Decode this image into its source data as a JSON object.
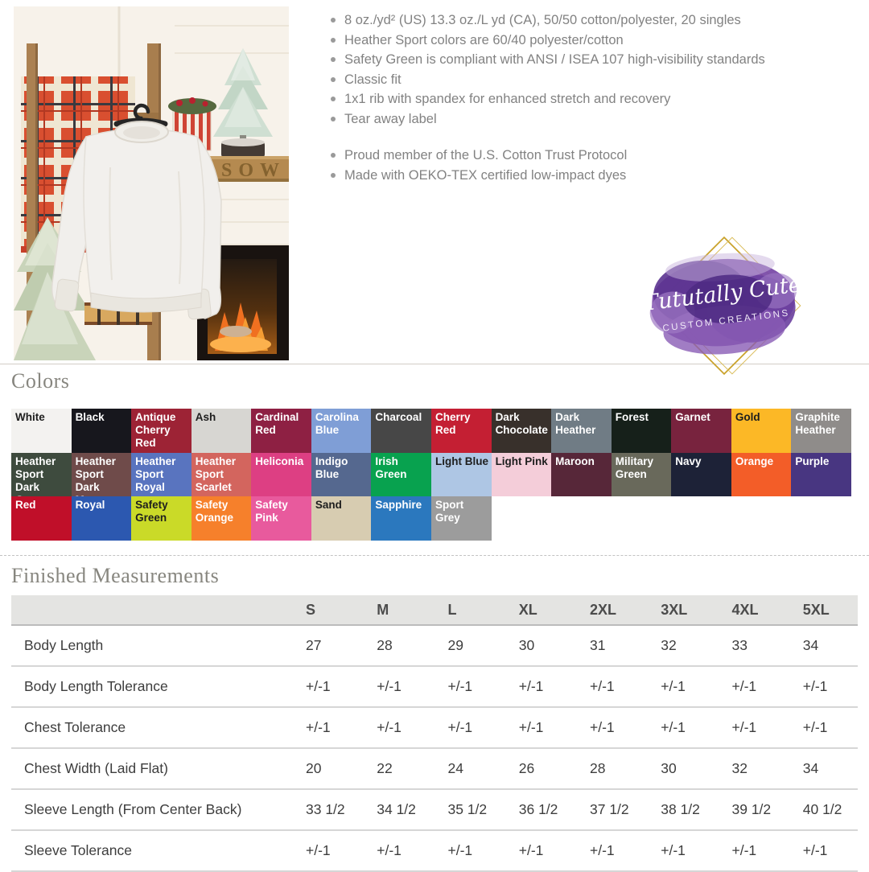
{
  "photo": {
    "shelf_text": "SOW"
  },
  "features": {
    "bullets": [
      "8 oz./yd² (US) 13.3 oz./L yd (CA), 50/50 cotton/polyester, 20 singles",
      "Heather Sport colors are 60/40 polyester/cotton",
      "Safety Green is compliant with ANSI / ISEA 107 high-visibility standards",
      "Classic fit",
      "1x1 rib with spandex for enhanced stretch and recovery",
      "Tear away label"
    ],
    "bullets_secondary": [
      "Proud member of the U.S. Cotton Trust Protocol",
      "Made with OEKO-TEX certified low-impact dyes"
    ]
  },
  "logo": {
    "name": "Tututally Cute",
    "tagline": "CUSTOM CREATIONS",
    "purple": "#6a3f9e",
    "gold": "#c9a22b"
  },
  "colors_section": {
    "heading": "Colors",
    "swatches": [
      {
        "label": "White",
        "bg": "#f3f2f0",
        "fg": "#1e1e1e"
      },
      {
        "label": "Black",
        "bg": "#17171d",
        "fg": "#ffffff"
      },
      {
        "label": "Antique Cherry Red",
        "bg": "#9d2335",
        "fg": "#ffffff"
      },
      {
        "label": "Ash",
        "bg": "#d7d6d2",
        "fg": "#1e1e1e"
      },
      {
        "label": "Cardinal Red",
        "bg": "#8e2043",
        "fg": "#ffffff"
      },
      {
        "label": "Carolina Blue",
        "bg": "#7f9ed6",
        "fg": "#ffffff"
      },
      {
        "label": "Charcoal",
        "bg": "#474747",
        "fg": "#ffffff"
      },
      {
        "label": "Cherry Red",
        "bg": "#c41f33",
        "fg": "#ffffff"
      },
      {
        "label": "Dark Chocolate",
        "bg": "#38302b",
        "fg": "#ffffff"
      },
      {
        "label": "Dark Heather",
        "bg": "#707c85",
        "fg": "#ffffff"
      },
      {
        "label": "Forest",
        "bg": "#16201a",
        "fg": "#ffffff"
      },
      {
        "label": "Garnet",
        "bg": "#78233e",
        "fg": "#ffffff"
      },
      {
        "label": "Gold",
        "bg": "#fcb826",
        "fg": "#1e1e1e"
      },
      {
        "label": "Graphite Heather",
        "bg": "#8f8c8a",
        "fg": "#ffffff"
      },
      {
        "label": "Heather Sport Dark Green",
        "bg": "#3e4b3e",
        "fg": "#ffffff"
      },
      {
        "label": "Heather Sport Dark Maroon",
        "bg": "#6f4b4a",
        "fg": "#ffffff"
      },
      {
        "label": "Heather Sport Royal",
        "bg": "#5974bf",
        "fg": "#ffffff"
      },
      {
        "label": "Heather Sport Scarlet",
        "bg": "#d3655e",
        "fg": "#ffffff"
      },
      {
        "label": "Heliconia",
        "bg": "#dd3f83",
        "fg": "#ffffff"
      },
      {
        "label": "Indigo Blue",
        "bg": "#55688f",
        "fg": "#ffffff"
      },
      {
        "label": "Irish Green",
        "bg": "#08a24f",
        "fg": "#ffffff"
      },
      {
        "label": "Light Blue",
        "bg": "#aec6e4",
        "fg": "#1e1e1e"
      },
      {
        "label": "Light Pink",
        "bg": "#f4cdd9",
        "fg": "#1e1e1e"
      },
      {
        "label": "Maroon",
        "bg": "#572739",
        "fg": "#ffffff"
      },
      {
        "label": "Military Green",
        "bg": "#69695b",
        "fg": "#ffffff"
      },
      {
        "label": "Navy",
        "bg": "#1d2237",
        "fg": "#ffffff"
      },
      {
        "label": "Orange",
        "bg": "#f35d28",
        "fg": "#ffffff"
      },
      {
        "label": "Purple",
        "bg": "#483681",
        "fg": "#ffffff"
      },
      {
        "label": "Red",
        "bg": "#c00f29",
        "fg": "#ffffff"
      },
      {
        "label": "Royal",
        "bg": "#2c58b0",
        "fg": "#ffffff"
      },
      {
        "label": "Safety Green",
        "bg": "#cada28",
        "fg": "#1e1e1e"
      },
      {
        "label": "Safety Orange",
        "bg": "#f6802b",
        "fg": "#ffffff"
      },
      {
        "label": "Safety Pink",
        "bg": "#e85a9d",
        "fg": "#ffffff"
      },
      {
        "label": "Sand",
        "bg": "#d7ccb1",
        "fg": "#1e1e1e"
      },
      {
        "label": "Sapphire",
        "bg": "#2b78be",
        "fg": "#ffffff"
      },
      {
        "label": "Sport Grey",
        "bg": "#9c9c9c",
        "fg": "#ffffff"
      }
    ]
  },
  "measurements": {
    "heading": "Finished Measurements",
    "sizes": [
      "S",
      "M",
      "L",
      "XL",
      "2XL",
      "3XL",
      "4XL",
      "5XL"
    ],
    "rows": [
      {
        "label": "Body Length",
        "values": [
          "27",
          "28",
          "29",
          "30",
          "31",
          "32",
          "33",
          "34"
        ]
      },
      {
        "label": "Body Length Tolerance",
        "values": [
          "+/-1",
          "+/-1",
          "+/-1",
          "+/-1",
          "+/-1",
          "+/-1",
          "+/-1",
          "+/-1"
        ]
      },
      {
        "label": "Chest Tolerance",
        "values": [
          "+/-1",
          "+/-1",
          "+/-1",
          "+/-1",
          "+/-1",
          "+/-1",
          "+/-1",
          "+/-1"
        ]
      },
      {
        "label": "Chest Width (Laid Flat)",
        "values": [
          "20",
          "22",
          "24",
          "26",
          "28",
          "30",
          "32",
          "34"
        ]
      },
      {
        "label": "Sleeve Length (From Center Back)",
        "values": [
          "33 1/2",
          "34 1/2",
          "35 1/2",
          "36 1/2",
          "37 1/2",
          "38 1/2",
          "39 1/2",
          "40 1/2"
        ]
      },
      {
        "label": "Sleeve Tolerance",
        "values": [
          "+/-1",
          "+/-1",
          "+/-1",
          "+/-1",
          "+/-1",
          "+/-1",
          "+/-1",
          "+/-1"
        ]
      }
    ]
  }
}
